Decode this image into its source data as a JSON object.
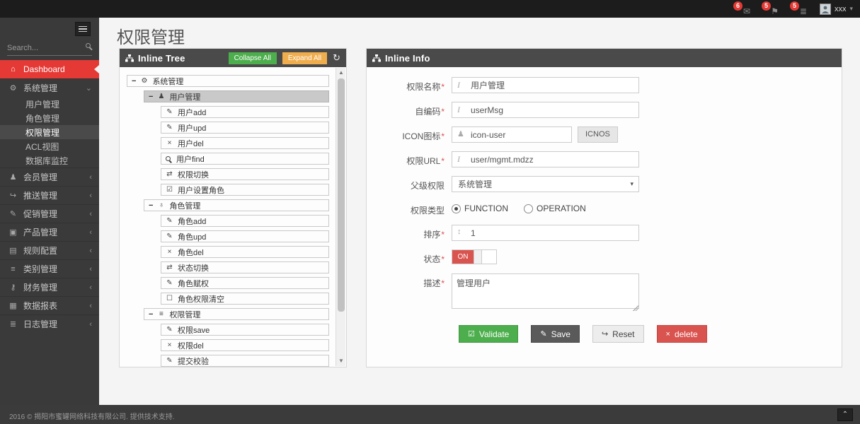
{
  "topbar": {
    "badges": [
      {
        "icon": "envelope-icon",
        "glyph": "✉",
        "count": "6"
      },
      {
        "icon": "flag-icon",
        "glyph": "⚑",
        "count": "5"
      },
      {
        "icon": "tasks-icon",
        "glyph": "≣",
        "count": "5"
      }
    ],
    "user": {
      "name": "xxx",
      "caret": "▾"
    }
  },
  "sidebar": {
    "search_placeholder": "Search...",
    "items": [
      {
        "key": "dashboard",
        "label": "Dashboard",
        "icon": "home-icon",
        "glyph": "⌂",
        "style": "red"
      },
      {
        "key": "system",
        "label": "系统管理",
        "icon": "gears-icon",
        "glyph": "⚙",
        "chevron": "⌄",
        "expanded": true,
        "children": [
          {
            "label": "用户管理",
            "active": false
          },
          {
            "label": "角色管理",
            "active": false
          },
          {
            "label": "权限管理",
            "active": true
          },
          {
            "label": "ACL视图",
            "active": false
          },
          {
            "label": "数据库监控",
            "active": false
          }
        ]
      },
      {
        "key": "member",
        "label": "会员管理",
        "icon": "user-icon",
        "glyph": "♟",
        "chevron": "‹"
      },
      {
        "key": "push",
        "label": "推送管理",
        "icon": "share-icon",
        "glyph": "↪",
        "chevron": "‹"
      },
      {
        "key": "promotion",
        "label": "促销管理",
        "icon": "pencil-icon",
        "glyph": "✎",
        "chevron": "‹"
      },
      {
        "key": "product",
        "label": "产品管理",
        "icon": "book-icon",
        "glyph": "▣",
        "chevron": "‹"
      },
      {
        "key": "rules",
        "label": "规则配置",
        "icon": "newspaper-icon",
        "glyph": "▤",
        "chevron": "‹"
      },
      {
        "key": "category",
        "label": "类别管理",
        "icon": "bars-icon",
        "glyph": "≡",
        "chevron": "‹"
      },
      {
        "key": "finance",
        "label": "财务管理",
        "icon": "key-icon",
        "glyph": "⚷",
        "chevron": "‹"
      },
      {
        "key": "report",
        "label": "数据报表",
        "icon": "chart-icon",
        "glyph": "▦",
        "chevron": "‹"
      },
      {
        "key": "log",
        "label": "日志管理",
        "icon": "list-icon",
        "glyph": "≣",
        "chevron": "‹"
      }
    ]
  },
  "page": {
    "title": "权限管理"
  },
  "tree_panel": {
    "title": "Inline Tree",
    "collapse_all": "Collapse All",
    "expand_all": "Expand All",
    "refresh_glyph": "↻",
    "rows": [
      {
        "level": 0,
        "branch": true,
        "icon": "gears-icon",
        "glyph": "⚙",
        "label": "系统管理"
      },
      {
        "level": 1,
        "branch": true,
        "icon": "user-icon",
        "glyph": "♟",
        "label": "用户管理",
        "selected": true
      },
      {
        "level": 2,
        "branch": false,
        "icon": "pencil-icon",
        "glyph": "✎",
        "label": "用户add"
      },
      {
        "level": 2,
        "branch": false,
        "icon": "pencil-square-icon",
        "glyph": "✎",
        "label": "用户upd"
      },
      {
        "level": 2,
        "branch": false,
        "icon": "x-icon",
        "glyph": "×",
        "label": "用户del"
      },
      {
        "level": 2,
        "branch": false,
        "icon": "search-icon",
        "glyph": "mag",
        "label": "用户find"
      },
      {
        "level": 2,
        "branch": false,
        "icon": "exchange-icon",
        "glyph": "⇄",
        "label": "权限切换"
      },
      {
        "level": 2,
        "branch": false,
        "icon": "check-square-icon",
        "glyph": "☑",
        "label": "用户设置角色"
      },
      {
        "level": 1,
        "branch": true,
        "icon": "sitemap-icon",
        "glyph": "♁",
        "label": "角色管理"
      },
      {
        "level": 2,
        "branch": false,
        "icon": "pencil-icon",
        "glyph": "✎",
        "label": "角色add"
      },
      {
        "level": 2,
        "branch": false,
        "icon": "pencil-square-icon",
        "glyph": "✎",
        "label": "角色upd"
      },
      {
        "level": 2,
        "branch": false,
        "icon": "x-icon",
        "glyph": "×",
        "label": "角色del"
      },
      {
        "level": 2,
        "branch": false,
        "icon": "exchange-icon",
        "glyph": "⇄",
        "label": "状态切换"
      },
      {
        "level": 2,
        "branch": false,
        "icon": "pencil-icon",
        "glyph": "✎",
        "label": "角色赋权"
      },
      {
        "level": 2,
        "branch": false,
        "icon": "square-icon",
        "glyph": "☐",
        "label": "角色权限清空"
      },
      {
        "level": 1,
        "branch": true,
        "icon": "bars-icon",
        "glyph": "≡",
        "label": "权限管理"
      },
      {
        "level": 2,
        "branch": false,
        "icon": "pencil-icon",
        "glyph": "✎",
        "label": "权限save"
      },
      {
        "level": 2,
        "branch": false,
        "icon": "x-icon",
        "glyph": "×",
        "label": "权限del"
      },
      {
        "level": 2,
        "branch": false,
        "icon": "pencil-square-icon",
        "glyph": "✎",
        "label": "提交校验",
        "partial": true
      }
    ]
  },
  "info_panel": {
    "title": "Inline Info",
    "fields": {
      "name": {
        "label": "权限名称",
        "required": "*",
        "value": "用户管理"
      },
      "code": {
        "label": "自编码",
        "required": "*",
        "value": "userMsg"
      },
      "icon": {
        "label": "ICON图标",
        "required": "*",
        "value": "icon-user",
        "button": "ICNOS"
      },
      "url": {
        "label": "权限URL",
        "required": "*",
        "value": "user/mgmt.mdzz"
      },
      "parent": {
        "label": "父级权限",
        "value": "系统管理",
        "caret": "▾"
      },
      "type": {
        "label": "权限类型",
        "options": [
          {
            "label": "FUNCTION",
            "checked": true
          },
          {
            "label": "OPERATION",
            "checked": false
          }
        ]
      },
      "sort": {
        "label": "排序",
        "required": "*",
        "value": "1",
        "icon_glyph": "↕"
      },
      "status": {
        "label": "状态",
        "required": "*",
        "value": "ON"
      },
      "desc": {
        "label": "描述",
        "required": "*",
        "value": "管理用户"
      }
    },
    "buttons": [
      {
        "key": "validate",
        "label": "Validate",
        "glyph": "☑"
      },
      {
        "key": "save",
        "label": "Save",
        "glyph": "✎"
      },
      {
        "key": "reset",
        "label": "Reset",
        "glyph": "↪"
      },
      {
        "key": "delete",
        "label": "delete",
        "glyph": "×"
      }
    ]
  },
  "footer": {
    "copyright": "2016 © 揭阳市蜜罐网络科技有限公司. 提供技术支持.",
    "back_top_glyph": "⌃"
  }
}
